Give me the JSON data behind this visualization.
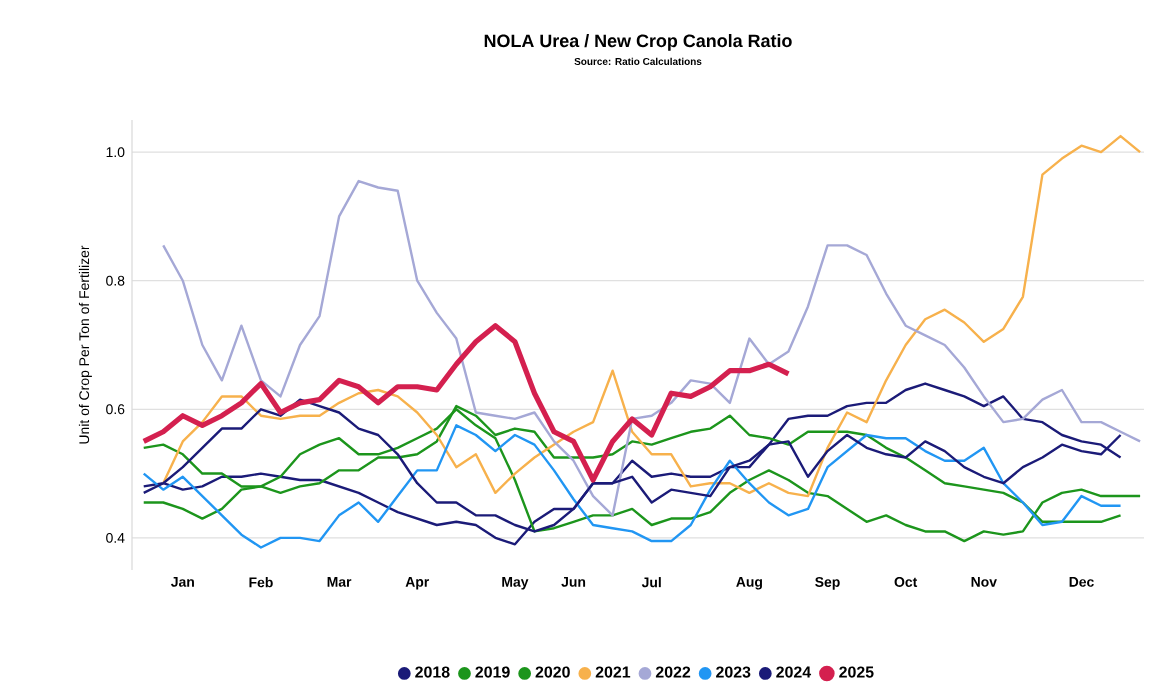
{
  "chart_data": {
    "type": "line",
    "title": "NOLA Urea / New Crop Canola Ratio",
    "subtitle": "Source: Ratio Calculations",
    "ylabel": "Unit of Crop Per Ton of Fertilizer",
    "categories": [
      null,
      null,
      "Jan",
      null,
      null,
      null,
      "Feb",
      null,
      null,
      null,
      "Mar",
      null,
      null,
      null,
      "Apr",
      null,
      null,
      null,
      null,
      "May",
      null,
      null,
      "Jun",
      null,
      null,
      null,
      "Jul",
      null,
      null,
      null,
      null,
      "Aug",
      null,
      null,
      null,
      "Sep",
      null,
      null,
      null,
      "Oct",
      null,
      null,
      null,
      "Nov",
      null,
      null,
      null,
      null,
      "Dec",
      null,
      null,
      null
    ],
    "ylim": [
      0.35,
      1.05
    ],
    "yticks": [
      0.4,
      0.6,
      0.8,
      {
        "value": 1.0,
        "label": "1.0"
      }
    ],
    "grid": "y",
    "legend": "bottom",
    "marker": "none",
    "line_style": "solid",
    "series": [
      {
        "name": "2018",
        "color": "#1b1b78",
        "values": [
          0.48,
          0.485,
          0.475,
          0.48,
          0.495,
          0.495,
          0.5,
          0.495,
          0.49,
          0.49,
          0.48,
          0.47,
          0.455,
          0.44,
          0.43,
          0.42,
          0.425,
          0.42,
          0.4,
          0.39,
          0.425,
          0.445,
          0.445,
          0.485,
          0.485,
          0.52,
          0.495,
          0.5,
          0.495,
          0.495,
          0.51,
          0.51,
          0.545,
          0.585,
          0.59,
          0.59,
          0.605,
          0.61,
          0.61,
          0.63,
          0.64,
          0.63,
          0.62,
          0.605,
          0.62,
          0.585,
          0.58,
          0.56,
          0.55,
          0.545,
          0.525,
          null
        ]
      },
      {
        "name": "2019",
        "color": "#1c951c",
        "values": [
          0.54,
          0.545,
          0.53,
          0.5,
          0.5,
          0.48,
          0.48,
          0.47,
          0.48,
          0.485,
          0.505,
          0.505,
          0.525,
          0.525,
          0.53,
          0.55,
          0.605,
          0.59,
          0.56,
          0.57,
          0.565,
          0.525,
          0.525,
          0.525,
          0.53,
          0.55,
          0.545,
          0.555,
          0.565,
          0.57,
          0.59,
          0.56,
          0.555,
          0.545,
          0.565,
          0.565,
          0.565,
          0.56,
          0.54,
          0.525,
          0.505,
          0.485,
          0.48,
          0.475,
          0.47,
          0.455,
          0.425,
          0.425,
          0.425,
          0.425,
          0.435,
          null
        ]
      },
      {
        "name": "2020",
        "color": "#1c951c",
        "values": [
          0.455,
          0.455,
          0.445,
          0.43,
          0.445,
          0.475,
          0.48,
          0.495,
          0.53,
          0.545,
          0.555,
          0.53,
          0.53,
          0.54,
          0.555,
          0.57,
          0.6,
          0.575,
          0.555,
          0.49,
          0.41,
          0.415,
          0.425,
          0.435,
          0.435,
          0.445,
          0.42,
          0.43,
          0.43,
          0.44,
          0.47,
          0.49,
          0.505,
          0.49,
          0.47,
          0.465,
          0.445,
          0.425,
          0.435,
          0.42,
          0.41,
          0.41,
          0.395,
          0.41,
          0.405,
          0.41,
          0.455,
          0.47,
          0.475,
          0.465,
          0.465,
          0.465
        ]
      },
      {
        "name": "2021",
        "color": "#f7b14c",
        "values": [
          null,
          0.485,
          0.55,
          0.58,
          0.62,
          0.62,
          0.59,
          0.585,
          0.59,
          0.59,
          0.61,
          0.625,
          0.63,
          0.62,
          0.595,
          0.56,
          0.51,
          0.53,
          0.47,
          0.5,
          0.525,
          0.545,
          0.565,
          0.58,
          0.66,
          0.565,
          0.53,
          0.53,
          0.48,
          0.485,
          0.485,
          0.47,
          0.485,
          0.47,
          0.465,
          0.54,
          0.595,
          0.58,
          0.645,
          0.7,
          0.74,
          0.755,
          0.735,
          0.705,
          0.725,
          0.775,
          0.965,
          0.99,
          1.01,
          1.0,
          1.025,
          1.0
        ]
      },
      {
        "name": "2022",
        "color": "#a5a8d6",
        "values": [
          null,
          0.855,
          0.8,
          0.7,
          0.645,
          0.73,
          0.645,
          0.62,
          0.7,
          0.745,
          0.9,
          0.955,
          0.945,
          0.94,
          0.8,
          0.75,
          0.71,
          0.595,
          0.59,
          0.585,
          0.595,
          0.55,
          0.52,
          0.465,
          0.435,
          0.585,
          0.59,
          0.61,
          0.645,
          0.64,
          0.61,
          0.71,
          0.67,
          0.69,
          0.76,
          0.855,
          0.855,
          0.84,
          0.78,
          0.73,
          0.715,
          0.7,
          0.665,
          0.62,
          0.58,
          0.585,
          0.615,
          0.63,
          0.58,
          0.58,
          0.565,
          0.55
        ]
      },
      {
        "name": "2023",
        "color": "#2196f3",
        "values": [
          0.5,
          0.475,
          0.495,
          0.465,
          0.435,
          0.405,
          0.385,
          0.4,
          0.4,
          0.395,
          0.435,
          0.455,
          0.425,
          0.465,
          0.505,
          0.505,
          0.575,
          0.56,
          0.535,
          0.56,
          0.545,
          0.505,
          0.46,
          0.42,
          0.415,
          0.41,
          0.395,
          0.395,
          0.42,
          0.475,
          0.52,
          0.485,
          0.455,
          0.435,
          0.445,
          0.51,
          0.535,
          0.56,
          0.555,
          0.555,
          0.535,
          0.52,
          0.52,
          0.54,
          0.485,
          0.455,
          0.42,
          0.425,
          0.465,
          0.45,
          0.45,
          null
        ]
      },
      {
        "name": "2024",
        "color": "#1b1b78",
        "values": [
          0.47,
          0.485,
          0.51,
          0.54,
          0.57,
          0.57,
          0.6,
          0.59,
          0.615,
          0.605,
          0.595,
          0.57,
          0.56,
          0.53,
          0.485,
          0.455,
          0.455,
          0.435,
          0.435,
          0.42,
          0.41,
          0.42,
          0.445,
          0.485,
          0.485,
          0.495,
          0.455,
          0.475,
          0.47,
          0.465,
          0.51,
          0.52,
          0.545,
          0.55,
          0.495,
          0.535,
          0.56,
          0.54,
          0.53,
          0.525,
          0.55,
          0.535,
          0.51,
          0.495,
          0.485,
          0.51,
          0.525,
          0.545,
          0.535,
          0.53,
          0.56,
          null
        ]
      },
      {
        "name": "2025",
        "color": "#d4204f",
        "values": [
          0.55,
          0.565,
          0.59,
          0.575,
          0.59,
          0.61,
          0.64,
          0.595,
          0.61,
          0.615,
          0.645,
          0.635,
          0.61,
          0.635,
          0.635,
          0.63,
          0.67,
          0.705,
          0.73,
          0.705,
          0.625,
          0.565,
          0.55,
          0.49,
          0.55,
          0.585,
          0.56,
          0.625,
          0.62,
          0.635,
          0.66,
          0.66,
          0.67,
          0.655,
          null,
          null,
          null,
          null,
          null,
          null,
          null,
          null,
          null,
          null,
          null,
          null,
          null,
          null,
          null,
          null,
          null,
          null
        ]
      }
    ]
  }
}
